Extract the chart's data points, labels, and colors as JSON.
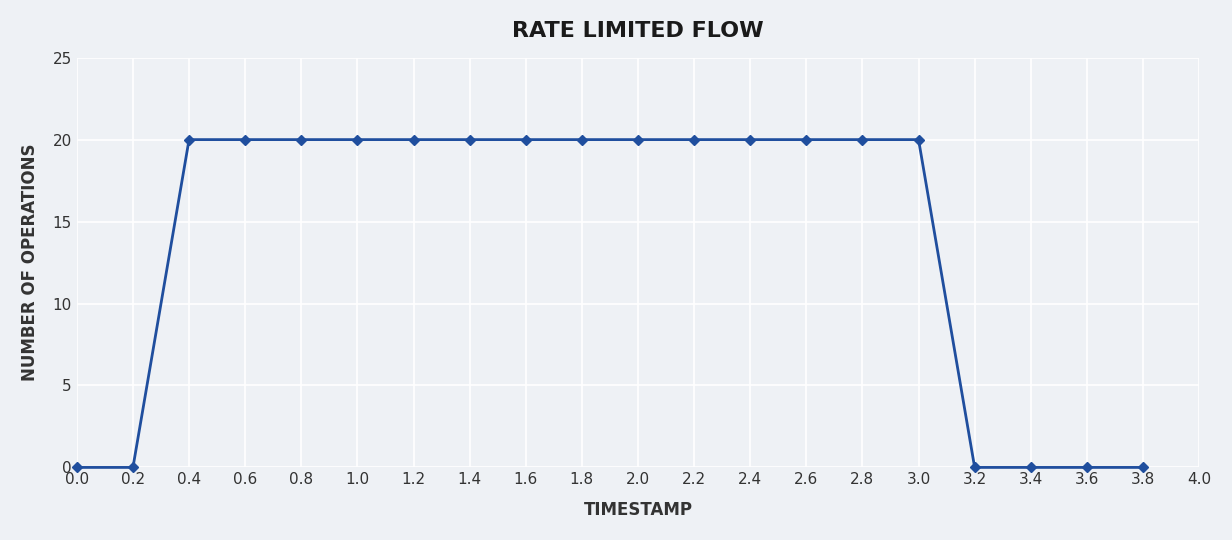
{
  "title": "RATE LIMITED FLOW",
  "xlabel": "TIMESTAMP",
  "ylabel": "NUMBER OF OPERATIONS",
  "line_color": "#1f4e9e",
  "marker_style": "D",
  "marker_size": 5,
  "line_width": 2.0,
  "background_color": "#eef1f5",
  "grid_color": "#ffffff",
  "xlim": [
    0.0,
    4.0
  ],
  "ylim": [
    0,
    25
  ],
  "xticks": [
    0.0,
    0.2,
    0.4,
    0.6,
    0.8,
    1.0,
    1.2,
    1.4,
    1.6,
    1.8,
    2.0,
    2.2,
    2.4,
    2.6,
    2.8,
    3.0,
    3.2,
    3.4,
    3.6,
    3.8,
    4.0
  ],
  "yticks": [
    0,
    5,
    10,
    15,
    20,
    25
  ],
  "x": [
    0.0,
    0.2,
    0.4,
    0.6,
    0.8,
    1.0,
    1.2,
    1.4,
    1.6,
    1.8,
    2.0,
    2.2,
    2.4,
    2.6,
    2.8,
    3.0,
    3.2,
    3.4,
    3.6,
    3.8
  ],
  "y": [
    0,
    0,
    20,
    20,
    20,
    20,
    20,
    20,
    20,
    20,
    20,
    20,
    20,
    20,
    20,
    20,
    0,
    0,
    0,
    0
  ]
}
